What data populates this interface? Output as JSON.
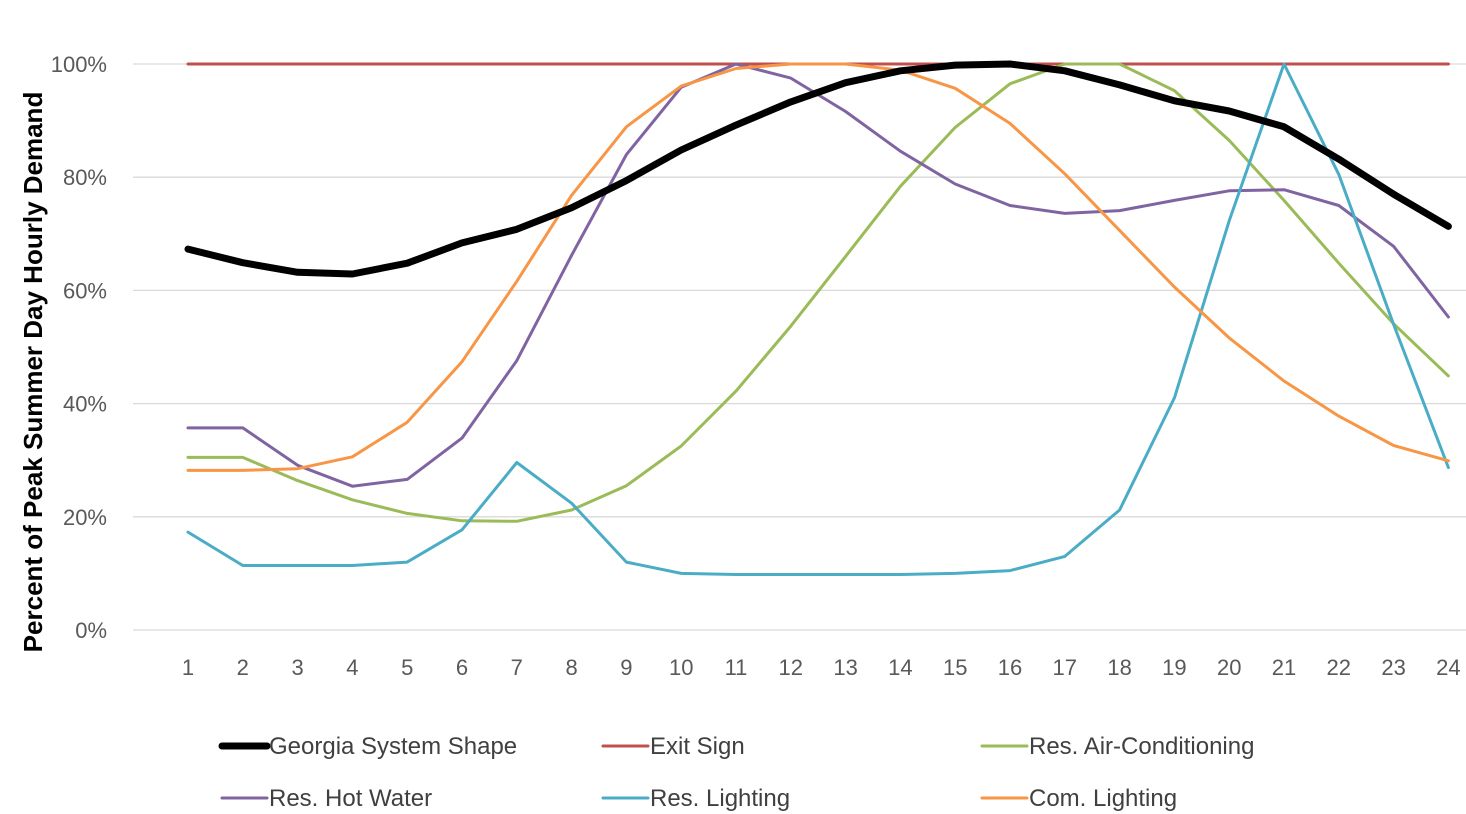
{
  "chart_data": {
    "type": "line",
    "title": "",
    "xlabel": "",
    "ylabel": "Percent of Peak Summer Day Hourly Demand",
    "x": [
      1,
      2,
      3,
      4,
      5,
      6,
      7,
      8,
      9,
      10,
      11,
      12,
      13,
      14,
      15,
      16,
      17,
      18,
      19,
      20,
      21,
      22,
      23,
      24
    ],
    "x_tick_labels": [
      "1",
      "2",
      "3",
      "4",
      "5",
      "6",
      "7",
      "8",
      "9",
      "10",
      "11",
      "12",
      "13",
      "14",
      "15",
      "16",
      "17",
      "18",
      "19",
      "20",
      "21",
      "22",
      "23",
      "24"
    ],
    "ylim": [
      0,
      100
    ],
    "y_ticks": [
      0,
      20,
      40,
      60,
      80,
      100
    ],
    "y_tick_labels": [
      "0%",
      "20%",
      "40%",
      "60%",
      "80%",
      "100%"
    ],
    "grid": "horizontal",
    "legend_position": "bottom",
    "series": [
      {
        "name": "Georgia System Shape",
        "color": "#000000",
        "width": 7,
        "values": [
          67.3,
          64.9,
          63.2,
          62.9,
          64.8,
          68.4,
          70.8,
          74.6,
          79.4,
          84.8,
          89.2,
          93.3,
          96.7,
          98.8,
          99.8,
          100,
          98.8,
          96.3,
          93.5,
          91.7,
          88.9,
          83.2,
          77,
          71.3
        ]
      },
      {
        "name": "Exit Sign",
        "color": "#c0504d",
        "width": 3,
        "values": [
          100,
          100,
          100,
          100,
          100,
          100,
          100,
          100,
          100,
          100,
          100,
          100,
          100,
          100,
          100,
          100,
          100,
          100,
          100,
          100,
          100,
          100,
          100,
          100
        ]
      },
      {
        "name": "Res. Air-Conditioning",
        "color": "#9bbb59",
        "width": 3,
        "values": [
          30.5,
          30.5,
          26.4,
          23,
          20.6,
          19.3,
          19.2,
          21.2,
          25.5,
          32.5,
          42.2,
          53.7,
          66,
          78.4,
          88.8,
          96.5,
          100,
          100,
          95.3,
          86.5,
          75.9,
          64.8,
          54.1,
          44.9
        ]
      },
      {
        "name": "Res. Hot Water",
        "color": "#8064a2",
        "width": 3,
        "values": [
          35.7,
          35.7,
          29.1,
          25.4,
          26.6,
          33.9,
          47.6,
          66.2,
          84,
          95.9,
          100,
          97.5,
          91.6,
          84.6,
          78.8,
          75,
          73.6,
          74.1,
          75.9,
          77.6,
          77.8,
          75,
          67.8,
          55.3
        ]
      },
      {
        "name": "Res. Lighting",
        "color": "#4bacc6",
        "width": 3,
        "values": [
          17.3,
          11.4,
          11.4,
          11.4,
          12,
          17.7,
          29.6,
          22.4,
          12,
          10,
          9.8,
          9.8,
          9.8,
          9.8,
          10,
          10.5,
          13,
          21.2,
          41,
          72.3,
          100,
          80.5,
          54,
          28.7
        ]
      },
      {
        "name": "Com. Lighting",
        "color": "#f79646",
        "width": 3,
        "values": [
          28.2,
          28.2,
          28.5,
          30.6,
          36.7,
          47.4,
          61.6,
          76.8,
          88.9,
          96.1,
          99.2,
          100,
          100,
          98.9,
          95.7,
          89.5,
          80.6,
          70.6,
          60.6,
          51.6,
          44,
          37.8,
          32.6,
          29.9
        ]
      }
    ]
  }
}
